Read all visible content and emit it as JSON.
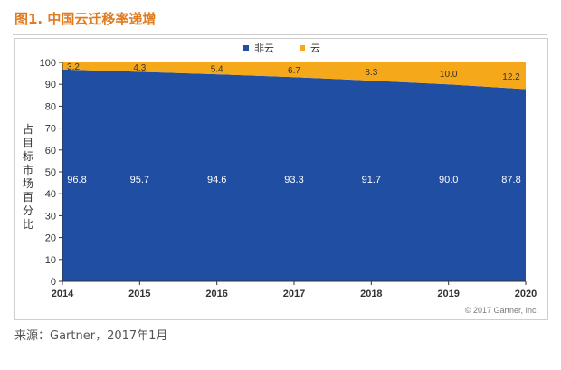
{
  "figure": {
    "title": "图1. 中国云迁移率递增",
    "source": "来源：Gartner，2017年1月",
    "copyright": "© 2017 Gartner, Inc."
  },
  "colors": {
    "non_cloud": "#1f4ea3",
    "cloud": "#f5a81a",
    "title": "#e07b1f"
  },
  "chart_data": {
    "type": "area",
    "stacked": true,
    "x": [
      "2014",
      "2015",
      "2016",
      "2017",
      "2018",
      "2019",
      "2020"
    ],
    "series": [
      {
        "name": "非云",
        "values": [
          96.8,
          95.7,
          94.6,
          93.3,
          91.7,
          90.0,
          87.8
        ]
      },
      {
        "name": "云",
        "values": [
          3.2,
          4.3,
          5.4,
          6.7,
          8.3,
          10.0,
          12.2
        ]
      }
    ],
    "ylabel": "占目标市场百分比",
    "ylim": [
      0,
      100
    ],
    "yticks": [
      "0",
      "10",
      "20",
      "30",
      "40",
      "50",
      "60",
      "70",
      "80",
      "90",
      "100"
    ],
    "legend_position": "top-center",
    "grid": false
  }
}
